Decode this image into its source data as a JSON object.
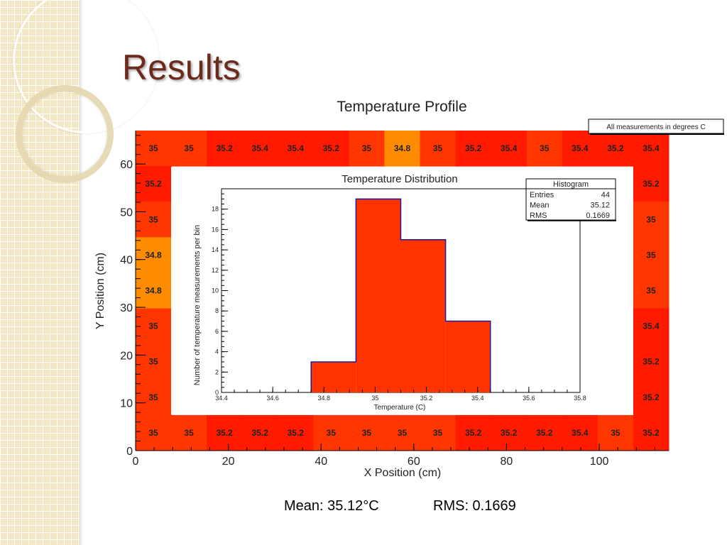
{
  "slide": {
    "title": "Results"
  },
  "footer": {
    "mean_text": "Mean: 35.12°C",
    "rms_text": "RMS: 0.1669"
  },
  "colors": {
    "title": "#6b2a1d",
    "red": "#ff1a00",
    "red_orange": "#ff3600",
    "orange": "#ff8c00",
    "histogram_fill": "#ff3300",
    "histogram_line": "#1c1c9c"
  },
  "chart_data": [
    {
      "type": "heatmap",
      "title": "Temperature Profile",
      "legend_note": "All measurements in degrees C",
      "xlabel": "X Position (cm)",
      "ylabel": "Y Position (cm)",
      "xlim": [
        0,
        115
      ],
      "ylim": [
        0,
        67
      ],
      "x_ticks": [
        "0",
        "20",
        "40",
        "60",
        "80",
        "100"
      ],
      "y_ticks": [
        "0",
        "10",
        "20",
        "30",
        "40",
        "50",
        "60"
      ],
      "x_ticks_values": [
        0,
        20,
        40,
        60,
        80,
        100
      ],
      "y_ticks_values": [
        0,
        10,
        20,
        30,
        40,
        50,
        60
      ],
      "top_row": [
        "35",
        "35",
        "35.2",
        "35.4",
        "35.4",
        "35.2",
        "35",
        "34.8",
        "35",
        "35.2",
        "35.4",
        "35",
        "35.4",
        "35.2",
        "35.4"
      ],
      "bottom_row": [
        "35",
        "35",
        "35.2",
        "35.2",
        "35.2",
        "35",
        "35",
        "35",
        "35",
        "35.2",
        "35.2",
        "35.2",
        "35.4",
        "35",
        "35.2"
      ],
      "left_col": [
        "35.2",
        "35",
        "34.8",
        "34.8",
        "35",
        "35",
        "35"
      ],
      "right_col": [
        "35.2",
        "35",
        "35",
        "35",
        "35.4",
        "35.2",
        "35.2"
      ]
    },
    {
      "type": "bar",
      "title": "Temperature Distribution",
      "xlabel": "Temperature (C)",
      "ylabel": "Number of temperature measurements per bin",
      "xlim": [
        34.4,
        35.8
      ],
      "ylim": [
        0,
        20
      ],
      "x_ticks": [
        "34.4",
        "34.6",
        "34.8",
        "35",
        "35.2",
        "35.4",
        "35.6",
        "35.8"
      ],
      "y_ticks": [
        "0",
        "2",
        "4",
        "6",
        "8",
        "10",
        "12",
        "14",
        "16",
        "18"
      ],
      "bins": [
        {
          "x0": 34.75,
          "x1": 34.925,
          "value": 3
        },
        {
          "x0": 34.925,
          "x1": 35.1,
          "value": 19
        },
        {
          "x0": 35.1,
          "x1": 35.275,
          "value": 15
        },
        {
          "x0": 35.275,
          "x1": 35.45,
          "value": 7
        }
      ],
      "stats_box": {
        "title": "Histogram",
        "rows": [
          {
            "label": "Entries",
            "value": "44"
          },
          {
            "label": "Mean",
            "value": "35.12"
          },
          {
            "label": "RMS",
            "value": "0.1669"
          }
        ]
      }
    }
  ]
}
